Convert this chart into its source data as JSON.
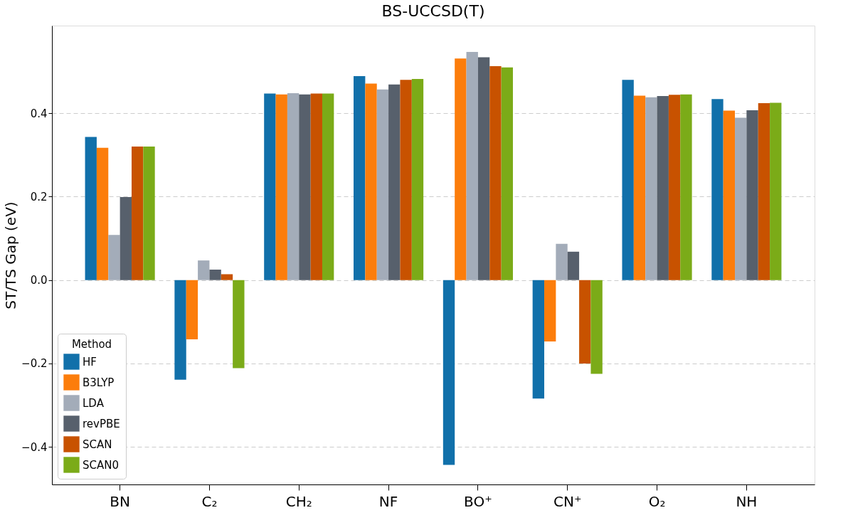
{
  "chart_data": {
    "type": "bar",
    "title": "BS-UCCSD(T)",
    "ylabel": "ST/TS Gap (eV)",
    "legend_title": "Method",
    "categories": [
      "BN",
      "C₂",
      "CH₂",
      "NF",
      "BO⁺",
      "CN⁺",
      "O₂",
      "NH"
    ],
    "series": [
      {
        "name": "HF",
        "color": "#1170aa",
        "values": [
          0.343,
          -0.239,
          0.447,
          0.489,
          -0.443,
          -0.284,
          0.48,
          0.434
        ]
      },
      {
        "name": "B3LYP",
        "color": "#fc7d0b",
        "values": [
          0.317,
          -0.142,
          0.445,
          0.471,
          0.531,
          -0.147,
          0.442,
          0.406
        ]
      },
      {
        "name": "LDA",
        "color": "#a3acb9",
        "values": [
          0.108,
          0.047,
          0.448,
          0.457,
          0.547,
          0.087,
          0.438,
          0.389
        ]
      },
      {
        "name": "revPBE",
        "color": "#57606c",
        "values": [
          0.199,
          0.025,
          0.445,
          0.469,
          0.534,
          0.068,
          0.441,
          0.407
        ]
      },
      {
        "name": "SCAN",
        "color": "#c85200",
        "values": [
          0.32,
          0.014,
          0.447,
          0.48,
          0.513,
          -0.2,
          0.444,
          0.424
        ]
      },
      {
        "name": "SCAN0",
        "color": "#7bab18",
        "values": [
          0.32,
          -0.211,
          0.447,
          0.482,
          0.51,
          -0.225,
          0.445,
          0.425
        ]
      }
    ],
    "ylim": [
      -0.49,
      0.61
    ],
    "yticks": [
      {
        "value": -0.4,
        "label": "−0.4"
      },
      {
        "value": -0.2,
        "label": "−0.2"
      },
      {
        "value": 0.0,
        "label": "0.0"
      },
      {
        "value": 0.2,
        "label": "0.2"
      },
      {
        "value": 0.4,
        "label": "0.4"
      }
    ],
    "grid": "y",
    "legend": "bottom left"
  }
}
